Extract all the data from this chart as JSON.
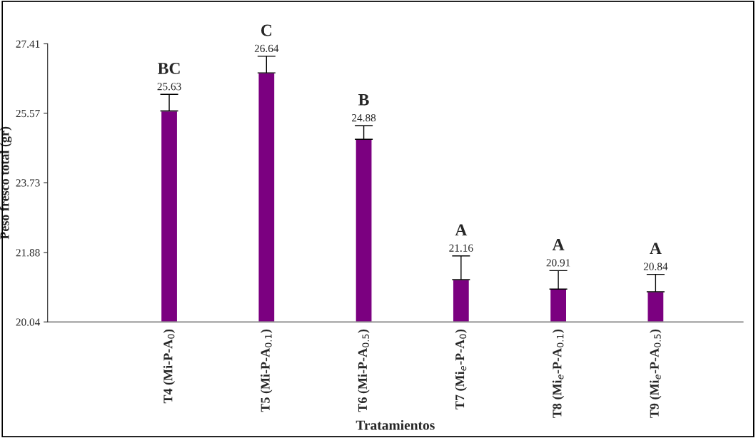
{
  "chart_data": {
    "type": "bar",
    "categories": [
      "T4 (Mi-P-A$_{0}$)",
      "T5 (Mi-P-A$_{0.1}$)",
      "T6 (Mi-P-A$_{0.5}$)",
      "T7 (Mi$_{e}$-P-A$_{0}$)",
      "T8 (Mi$_{e}$-P-A$_{0.1}$)",
      "T9 (Mi$_{e}$-P-A$_{0.5}$)"
    ],
    "values": [
      25.63,
      26.64,
      24.88,
      21.16,
      20.91,
      20.84
    ],
    "errors": [
      [
        25.63,
        26.07
      ],
      [
        26.64,
        27.08
      ],
      [
        24.88,
        25.24
      ],
      [
        21.16,
        21.79
      ],
      [
        20.91,
        21.4
      ],
      [
        20.84,
        21.3
      ]
    ],
    "color": "#7b0080",
    "data_labels": true,
    "xlabel": "Tratamientos",
    "ylabel": "Peso fresco total (gr)",
    "ylim": [
      20.04,
      27.41
    ],
    "yticks": [
      20.04,
      21.88,
      23.73,
      25.57,
      27.41
    ],
    "annotations": [
      "BC",
      "C",
      "B",
      "A",
      "A",
      "A"
    ],
    "grid": false,
    "legend": false
  }
}
